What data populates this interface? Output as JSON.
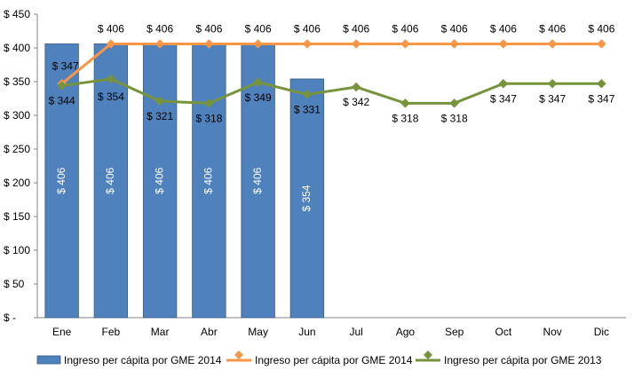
{
  "chart_data": {
    "type": "bar+line",
    "categories": [
      "Ene",
      "Feb",
      "Mar",
      "Abr",
      "May",
      "Jun",
      "Jul",
      "Ago",
      "Sep",
      "Oct",
      "Nov",
      "Dic"
    ],
    "ylim": [
      0,
      450
    ],
    "yticks": [
      0,
      50,
      100,
      150,
      200,
      250,
      300,
      350,
      400,
      450
    ],
    "ytick_labels": [
      "$ -",
      "$ 50",
      "$ 100",
      "$ 150",
      "$ 200",
      "$ 250",
      "$ 300",
      "$ 350",
      "$ 400",
      "$ 450"
    ],
    "grid": false,
    "legend_position": "bottom",
    "series": [
      {
        "name": "Ingreso per cápita por GME 2014",
        "kind": "bar",
        "color": "#4f81bd",
        "values": [
          406,
          406,
          406,
          406,
          406,
          354,
          null,
          null,
          null,
          null,
          null,
          null
        ],
        "labels": [
          "$ 406",
          "$ 406",
          "$ 406",
          "$ 406",
          "$ 406",
          "$ 354",
          "",
          "",
          "",
          "",
          "",
          ""
        ]
      },
      {
        "name": "Ingreso per cápita por GME 2014",
        "kind": "line",
        "color": "#f79646",
        "values": [
          347,
          406,
          406,
          406,
          406,
          406,
          406,
          406,
          406,
          406,
          406,
          406
        ],
        "labels": [
          "$ 347",
          "$ 406",
          "$ 406",
          "$ 406",
          "$ 406",
          "$ 406",
          "$ 406",
          "$ 406",
          "$ 406",
          "$ 406",
          "$ 406",
          "$ 406"
        ]
      },
      {
        "name": "Ingreso per cápita por GME 2013",
        "kind": "line",
        "color": "#77933c",
        "values": [
          344,
          354,
          321,
          318,
          349,
          331,
          342,
          318,
          318,
          347,
          347,
          347
        ],
        "labels": [
          "$ 344",
          "$ 354",
          "$ 321",
          "$ 318",
          "$ 349",
          "$ 331",
          "$ 342",
          "$ 318",
          "$ 318",
          "$ 347",
          "$ 347",
          "$ 347"
        ]
      }
    ]
  }
}
